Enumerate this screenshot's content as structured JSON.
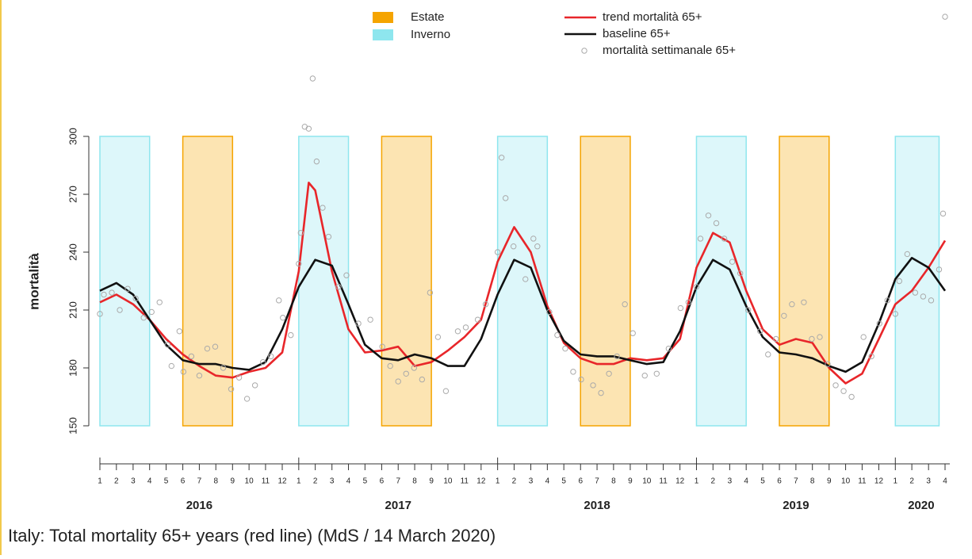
{
  "chart_data": {
    "type": "line",
    "ylabel": "mortalità",
    "caption": "Italy: Total mortality 65+ years (red line) (MdS / 14 March 2020)",
    "ylim": [
      150,
      300
    ],
    "yticks": [
      150,
      180,
      210,
      240,
      270,
      300
    ],
    "xlim": [
      2016,
      2020.25
    ],
    "xticks": [
      {
        "value": 2016.0,
        "label": "1"
      },
      {
        "value": 2016.083,
        "label": "2"
      },
      {
        "value": 2016.167,
        "label": "3"
      },
      {
        "value": 2016.25,
        "label": "4"
      },
      {
        "value": 2016.333,
        "label": "5"
      },
      {
        "value": 2016.417,
        "label": "6"
      },
      {
        "value": 2016.5,
        "label": "7"
      },
      {
        "value": 2016.583,
        "label": "8"
      },
      {
        "value": 2016.667,
        "label": "9"
      },
      {
        "value": 2016.75,
        "label": "10"
      },
      {
        "value": 2016.833,
        "label": "11"
      },
      {
        "value": 2016.917,
        "label": "12"
      },
      {
        "value": 2017.0,
        "label": "1"
      },
      {
        "value": 2017.083,
        "label": "2"
      },
      {
        "value": 2017.167,
        "label": "3"
      },
      {
        "value": 2017.25,
        "label": "4"
      },
      {
        "value": 2017.333,
        "label": "5"
      },
      {
        "value": 2017.417,
        "label": "6"
      },
      {
        "value": 2017.5,
        "label": "7"
      },
      {
        "value": 2017.583,
        "label": "8"
      },
      {
        "value": 2017.667,
        "label": "9"
      },
      {
        "value": 2017.75,
        "label": "10"
      },
      {
        "value": 2017.833,
        "label": "11"
      },
      {
        "value": 2017.917,
        "label": "12"
      },
      {
        "value": 2018.0,
        "label": "1"
      },
      {
        "value": 2018.083,
        "label": "2"
      },
      {
        "value": 2018.167,
        "label": "3"
      },
      {
        "value": 2018.25,
        "label": "4"
      },
      {
        "value": 2018.333,
        "label": "5"
      },
      {
        "value": 2018.417,
        "label": "6"
      },
      {
        "value": 2018.5,
        "label": "7"
      },
      {
        "value": 2018.583,
        "label": "8"
      },
      {
        "value": 2018.667,
        "label": "9"
      },
      {
        "value": 2018.75,
        "label": "10"
      },
      {
        "value": 2018.833,
        "label": "11"
      },
      {
        "value": 2018.917,
        "label": "12"
      },
      {
        "value": 2019.0,
        "label": "1"
      },
      {
        "value": 2019.083,
        "label": "2"
      },
      {
        "value": 2019.167,
        "label": "3"
      },
      {
        "value": 2019.25,
        "label": "4"
      },
      {
        "value": 2019.333,
        "label": "5"
      },
      {
        "value": 2019.417,
        "label": "6"
      },
      {
        "value": 2019.5,
        "label": "7"
      },
      {
        "value": 2019.583,
        "label": "8"
      },
      {
        "value": 2019.667,
        "label": "9"
      },
      {
        "value": 2019.75,
        "label": "10"
      },
      {
        "value": 2019.833,
        "label": "11"
      },
      {
        "value": 2019.917,
        "label": "12"
      },
      {
        "value": 2020.0,
        "label": "1"
      },
      {
        "value": 2020.083,
        "label": "2"
      },
      {
        "value": 2020.167,
        "label": "3"
      },
      {
        "value": 2020.25,
        "label": "4"
      }
    ],
    "year_labels": [
      {
        "value": 2016.5,
        "label": "2016"
      },
      {
        "value": 2017.5,
        "label": "2017"
      },
      {
        "value": 2018.5,
        "label": "2018"
      },
      {
        "value": 2019.5,
        "label": "2019"
      },
      {
        "value": 2020.13,
        "label": "2020"
      }
    ],
    "band_types": [
      {
        "name": "Estate",
        "color": "#f5a400"
      },
      {
        "name": "Inverno",
        "color": "#8ee6ee"
      }
    ],
    "bands": [
      {
        "kind": 1,
        "start": 2016.0,
        "end": 2016.25
      },
      {
        "kind": 0,
        "start": 2016.417,
        "end": 2016.667
      },
      {
        "kind": 1,
        "start": 2017.0,
        "end": 2017.25
      },
      {
        "kind": 0,
        "start": 2017.417,
        "end": 2017.667
      },
      {
        "kind": 1,
        "start": 2018.0,
        "end": 2018.25
      },
      {
        "kind": 0,
        "start": 2018.417,
        "end": 2018.667
      },
      {
        "kind": 1,
        "start": 2019.0,
        "end": 2019.25
      },
      {
        "kind": 0,
        "start": 2019.417,
        "end": 2019.667
      },
      {
        "kind": 1,
        "start": 2020.0,
        "end": 2020.22
      }
    ],
    "series": [
      {
        "name": "trend mortalità 65+",
        "color": "#e8262a",
        "mode": "lines",
        "x": [
          2016.0,
          2016.083,
          2016.167,
          2016.25,
          2016.333,
          2016.417,
          2016.5,
          2016.583,
          2016.667,
          2016.75,
          2016.833,
          2016.917,
          2017.0,
          2017.05,
          2017.083,
          2017.167,
          2017.25,
          2017.333,
          2017.417,
          2017.5,
          2017.583,
          2017.667,
          2017.75,
          2017.833,
          2017.917,
          2018.0,
          2018.083,
          2018.167,
          2018.25,
          2018.333,
          2018.417,
          2018.5,
          2018.583,
          2018.667,
          2018.75,
          2018.833,
          2018.917,
          2019.0,
          2019.083,
          2019.167,
          2019.25,
          2019.333,
          2019.417,
          2019.5,
          2019.583,
          2019.667,
          2019.75,
          2019.833,
          2019.917,
          2020.0,
          2020.083,
          2020.167,
          2020.25
        ],
        "values": [
          214,
          218,
          213,
          205,
          195,
          187,
          181,
          176,
          175,
          178,
          180,
          188,
          230,
          276,
          272,
          230,
          200,
          188,
          189,
          191,
          181,
          183,
          189,
          196,
          205,
          235,
          253,
          240,
          212,
          193,
          185,
          182,
          182,
          185,
          184,
          185,
          195,
          232,
          250,
          245,
          220,
          200,
          192,
          195,
          193,
          180,
          172,
          177,
          195,
          213,
          220,
          232,
          246
        ]
      },
      {
        "name": "baseline 65+",
        "color": "#111111",
        "mode": "lines",
        "x": [
          2016.0,
          2016.083,
          2016.167,
          2016.25,
          2016.333,
          2016.417,
          2016.5,
          2016.583,
          2016.667,
          2016.75,
          2016.833,
          2016.917,
          2017.0,
          2017.083,
          2017.167,
          2017.25,
          2017.333,
          2017.417,
          2017.5,
          2017.583,
          2017.667,
          2017.75,
          2017.833,
          2017.917,
          2018.0,
          2018.083,
          2018.167,
          2018.25,
          2018.333,
          2018.417,
          2018.5,
          2018.583,
          2018.667,
          2018.75,
          2018.833,
          2018.917,
          2019.0,
          2019.083,
          2019.167,
          2019.25,
          2019.333,
          2019.417,
          2019.5,
          2019.583,
          2019.667,
          2019.75,
          2019.833,
          2019.917,
          2020.0,
          2020.083,
          2020.167,
          2020.25
        ],
        "values": [
          220,
          224,
          218,
          205,
          192,
          184,
          182,
          182,
          180,
          179,
          183,
          200,
          222,
          236,
          233,
          213,
          192,
          185,
          184,
          187,
          185,
          181,
          181,
          195,
          218,
          236,
          232,
          210,
          194,
          187,
          186,
          186,
          184,
          182,
          183,
          199,
          222,
          236,
          231,
          212,
          196,
          188,
          187,
          185,
          181,
          178,
          183,
          203,
          226,
          237,
          232,
          220
        ]
      },
      {
        "name": "mortalità settimanale 65+",
        "color": "#aaaaaa",
        "mode": "points",
        "x": [
          2016.0,
          2016.02,
          2016.06,
          2016.1,
          2016.14,
          2016.18,
          2016.22,
          2016.26,
          2016.3,
          2016.34,
          2016.36,
          2016.4,
          2016.42,
          2016.46,
          2016.5,
          2016.54,
          2016.58,
          2016.62,
          2016.66,
          2016.7,
          2016.74,
          2016.78,
          2016.82,
          2016.86,
          2016.9,
          2016.92,
          2016.96,
          2017.0,
          2017.01,
          2017.03,
          2017.05,
          2017.07,
          2017.09,
          2017.12,
          2017.15,
          2017.2,
          2017.24,
          2017.3,
          2017.36,
          2017.42,
          2017.46,
          2017.5,
          2017.54,
          2017.58,
          2017.62,
          2017.66,
          2017.7,
          2017.74,
          2017.8,
          2017.84,
          2017.9,
          2017.94,
          2018.0,
          2018.02,
          2018.04,
          2018.08,
          2018.14,
          2018.18,
          2018.2,
          2018.26,
          2018.3,
          2018.34,
          2018.38,
          2018.42,
          2018.48,
          2018.52,
          2018.56,
          2018.6,
          2018.64,
          2018.68,
          2018.74,
          2018.8,
          2018.86,
          2018.92,
          2018.96,
          2019.0,
          2019.02,
          2019.06,
          2019.1,
          2019.14,
          2019.18,
          2019.22,
          2019.26,
          2019.32,
          2019.36,
          2019.4,
          2019.44,
          2019.48,
          2019.54,
          2019.58,
          2019.62,
          2019.66,
          2019.7,
          2019.74,
          2019.78,
          2019.84,
          2019.88,
          2019.92,
          2019.96,
          2020.0,
          2020.02,
          2020.06,
          2020.1,
          2020.14,
          2020.18,
          2020.22,
          2020.24,
          2020.25
        ],
        "values": [
          208,
          218,
          219,
          210,
          221,
          216,
          206,
          209,
          214,
          192,
          181,
          199,
          178,
          186,
          176,
          190,
          191,
          180,
          169,
          175,
          164,
          171,
          183,
          186,
          215,
          206,
          197,
          234,
          250,
          305,
          304,
          330,
          287,
          263,
          248,
          222,
          228,
          203,
          205,
          191,
          181,
          173,
          177,
          180,
          174,
          219,
          196,
          168,
          199,
          201,
          205,
          213,
          240,
          289,
          268,
          243,
          226,
          247,
          243,
          209,
          197,
          190,
          178,
          174,
          171,
          167,
          177,
          186,
          213,
          198,
          176,
          177,
          190,
          211,
          214,
          222,
          247,
          259,
          255,
          247,
          235,
          229,
          210,
          199,
          187,
          195,
          207,
          213,
          214,
          195,
          196,
          182,
          171,
          168,
          165,
          196,
          186,
          203,
          215,
          208,
          225,
          239,
          219,
          217,
          215,
          231,
          260,
          362
        ]
      }
    ]
  }
}
